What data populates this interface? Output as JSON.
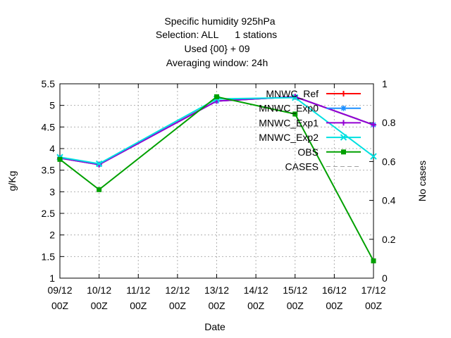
{
  "chart_data": {
    "type": "line",
    "title_lines": [
      "Specific humidity 925hPa",
      "Selection: ALL      1 stations",
      "Used {00} + 09",
      "Averaging window: 24h"
    ],
    "xlabel": "Date",
    "ylabel": "g/Kg",
    "y2label": "No cases",
    "categories": [
      "09/12",
      "10/12",
      "11/12",
      "12/12",
      "13/12",
      "14/12",
      "15/12",
      "16/12",
      "17/12"
    ],
    "category_sublabel": "00Z",
    "ylim": [
      1,
      5.5
    ],
    "yticks": [
      "1",
      "1.5",
      "2",
      "2.5",
      "3",
      "3.5",
      "4",
      "4.5",
      "5",
      "5.5"
    ],
    "y2lim": [
      0,
      1
    ],
    "y2ticks": [
      "0",
      "0.2",
      "0.4",
      "0.6",
      "0.8",
      "1"
    ],
    "grid": true,
    "legend_position": "top-right",
    "series": [
      {
        "name": "MNWC_Ref",
        "color": "#ff0000",
        "marker": "plus",
        "values": [
          3.78,
          3.63,
          null,
          null,
          5.1,
          null,
          5.2,
          null,
          4.55
        ]
      },
      {
        "name": "MNWC_Exp0",
        "color": "#1e90ff",
        "marker": "star",
        "values": [
          3.78,
          3.63,
          null,
          null,
          5.1,
          null,
          5.2,
          null,
          4.55
        ]
      },
      {
        "name": "MNWC_Exp1",
        "color": "#9400d3",
        "marker": "plus",
        "values": [
          3.78,
          3.63,
          null,
          null,
          5.1,
          null,
          5.2,
          null,
          4.55
        ]
      },
      {
        "name": "MNWC_Exp2",
        "color": "#00e0e0",
        "marker": "x",
        "values": [
          3.8,
          3.65,
          null,
          null,
          5.15,
          null,
          5.18,
          null,
          3.82
        ]
      },
      {
        "name": "OBS",
        "color": "#00a000",
        "marker": "square",
        "values": [
          3.75,
          3.05,
          null,
          null,
          5.2,
          null,
          4.8,
          null,
          1.4
        ]
      },
      {
        "name": "CASES",
        "color": "#a0a0a0",
        "marker": "none",
        "dashed": true,
        "values": [
          null,
          null,
          null,
          null,
          null,
          null,
          null,
          null,
          null
        ]
      }
    ]
  }
}
